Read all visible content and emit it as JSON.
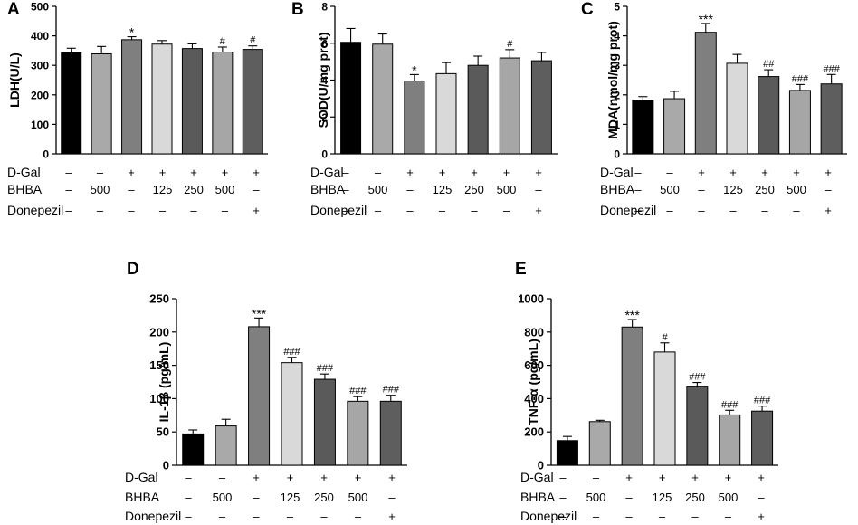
{
  "chart_data": [
    {
      "type": "bar",
      "panel_label": "A",
      "ylabel": "LDH(U/L)",
      "ylim": [
        0,
        500
      ],
      "yticks": [
        0,
        100,
        200,
        300,
        400,
        500
      ],
      "tick_labels": [
        "0",
        "100",
        "200",
        "300",
        "400",
        "500"
      ],
      "values": [
        343,
        339,
        387,
        372,
        357,
        345,
        354
      ],
      "errors": [
        15,
        25,
        10,
        12,
        16,
        17,
        12
      ],
      "annotations": [
        "",
        "",
        "*",
        "",
        "",
        "#",
        "#"
      ],
      "bar_colors": [
        "#000000",
        "#a9a9a9",
        "#7f7f7f",
        "#d9d9d9",
        "#5a5a5a",
        "#a6a6a6",
        "#5e5e5e"
      ]
    },
    {
      "type": "bar",
      "panel_label": "B",
      "ylabel": "SOD(U/mg prot)",
      "ylim": [
        0,
        8
      ],
      "yticks": [
        0,
        2,
        4,
        6,
        8
      ],
      "tick_labels": [
        "0",
        "2",
        "4",
        "6",
        "8"
      ],
      "values": [
        6.05,
        5.95,
        3.95,
        4.35,
        4.8,
        5.2,
        5.05
      ],
      "errors": [
        0.75,
        0.55,
        0.35,
        0.6,
        0.5,
        0.45,
        0.45
      ],
      "annotations": [
        "",
        "",
        "*",
        "",
        "",
        "#",
        ""
      ],
      "bar_colors": [
        "#000000",
        "#a9a9a9",
        "#7f7f7f",
        "#d9d9d9",
        "#5a5a5a",
        "#a6a6a6",
        "#5e5e5e"
      ]
    },
    {
      "type": "bar",
      "panel_label": "C",
      "ylabel": "MDA(nmol/mg prot)",
      "ylim": [
        0,
        5
      ],
      "yticks": [
        0,
        1,
        2,
        3,
        4,
        5
      ],
      "tick_labels": [
        "0",
        "1",
        "2",
        "3",
        "4",
        "5"
      ],
      "values": [
        1.82,
        1.87,
        4.12,
        3.07,
        2.62,
        2.15,
        2.37
      ],
      "errors": [
        0.12,
        0.25,
        0.3,
        0.3,
        0.23,
        0.2,
        0.32
      ],
      "annotations": [
        "",
        "",
        "***",
        "",
        "##",
        "###",
        "###"
      ],
      "bar_colors": [
        "#000000",
        "#a9a9a9",
        "#7f7f7f",
        "#d9d9d9",
        "#5a5a5a",
        "#a6a6a6",
        "#5e5e5e"
      ]
    },
    {
      "type": "bar",
      "panel_label": "D",
      "ylabel": "IL-1β (pg/mL)",
      "ylim": [
        0,
        250
      ],
      "yticks": [
        0,
        50,
        100,
        150,
        200,
        250
      ],
      "tick_labels": [
        "0",
        "50",
        "100",
        "150",
        "200",
        "250"
      ],
      "values": [
        47,
        59,
        208,
        154,
        129,
        96,
        96
      ],
      "errors": [
        6,
        10,
        13,
        8,
        8,
        7,
        9
      ],
      "annotations": [
        "",
        "",
        "***",
        "###",
        "###",
        "###",
        "###"
      ],
      "bar_colors": [
        "#000000",
        "#a9a9a9",
        "#7f7f7f",
        "#d9d9d9",
        "#5a5a5a",
        "#a6a6a6",
        "#5e5e5e"
      ]
    },
    {
      "type": "bar",
      "panel_label": "E",
      "ylabel": "TNF-α (pg/mL)",
      "ylim": [
        0,
        1000
      ],
      "yticks": [
        0,
        200,
        400,
        600,
        800,
        1000
      ],
      "tick_labels": [
        "0",
        "200",
        "400",
        "600",
        "800",
        "1000"
      ],
      "values": [
        148,
        262,
        830,
        680,
        475,
        302,
        325
      ],
      "errors": [
        25,
        8,
        45,
        55,
        22,
        28,
        30
      ],
      "annotations": [
        "",
        "",
        "***",
        "#",
        "###",
        "###",
        "###"
      ],
      "bar_colors": [
        "#000000",
        "#a9a9a9",
        "#7f7f7f",
        "#d9d9d9",
        "#5a5a5a",
        "#a6a6a6",
        "#5e5e5e"
      ]
    }
  ],
  "treatment_table": {
    "row_labels": [
      "D-Gal",
      "BHBA",
      "Donepezil"
    ],
    "rows": [
      [
        "–",
        "–",
        "+",
        "+",
        "+",
        "+",
        "+"
      ],
      [
        "–",
        "500",
        "–",
        "125",
        "250",
        "500",
        "–"
      ],
      [
        "–",
        "–",
        "–",
        "–",
        "–",
        "–",
        "+"
      ]
    ]
  }
}
